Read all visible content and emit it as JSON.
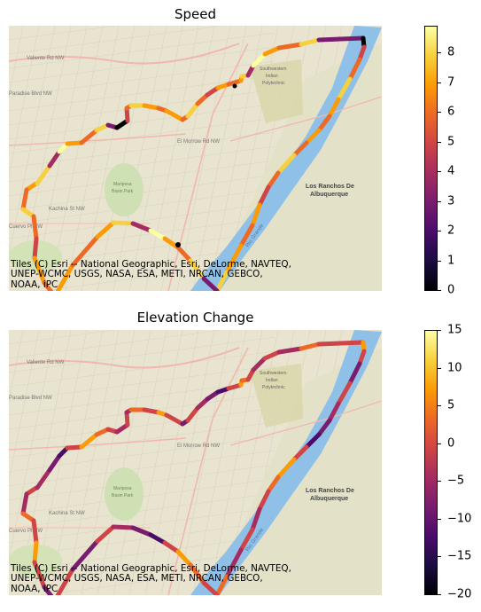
{
  "panels": [
    {
      "title": "Speed",
      "attribution": "Tiles (C) Esri -- National Geographic, Esri, DeLorme, NAVTEQ,\nUNEP-WCMC, USGS, NASA, ESA, METI, NRCAN, GEBCO,\nNOAA, iPC",
      "colorbar": {
        "colormap": "inferno",
        "min": 0,
        "max": 8.9,
        "ticks": [
          "0",
          "1",
          "2",
          "3",
          "4",
          "5",
          "6",
          "7",
          "8"
        ]
      },
      "map_labels": [
        "Valiente Rd NW",
        "Paradise Blvd NW",
        "El Morrow Rd NW",
        "Southwestern Indian Polytechnic",
        "Los Ranchos De Albuquerque",
        "Mariposa Basin Park",
        "Rio Grande",
        "Kachina St NW",
        "Cuervo Pl NW"
      ]
    },
    {
      "title": "Elevation Change",
      "attribution": "Tiles (C) Esri -- National Geographic, Esri, DeLorme, NAVTEQ,\nUNEP-WCMC, USGS, NASA, ESA, METI, NRCAN, GEBCO,\nNOAA, iPC",
      "colorbar": {
        "colormap": "inferno",
        "min": -20,
        "max": 15,
        "ticks": [
          "−20",
          "−15",
          "−10",
          "−5",
          "0",
          "5",
          "10",
          "15"
        ]
      },
      "map_labels": [
        "Valiente Rd NW",
        "Paradise Blvd NW",
        "El Morrow Rd NW",
        "Southwestern Indian Polytechnic",
        "Los Ranchos De Albuquerque",
        "Mariposa Basin Park",
        "Rio Grande",
        "Kachina St NW",
        "Cuervo Pl NW"
      ]
    }
  ]
}
